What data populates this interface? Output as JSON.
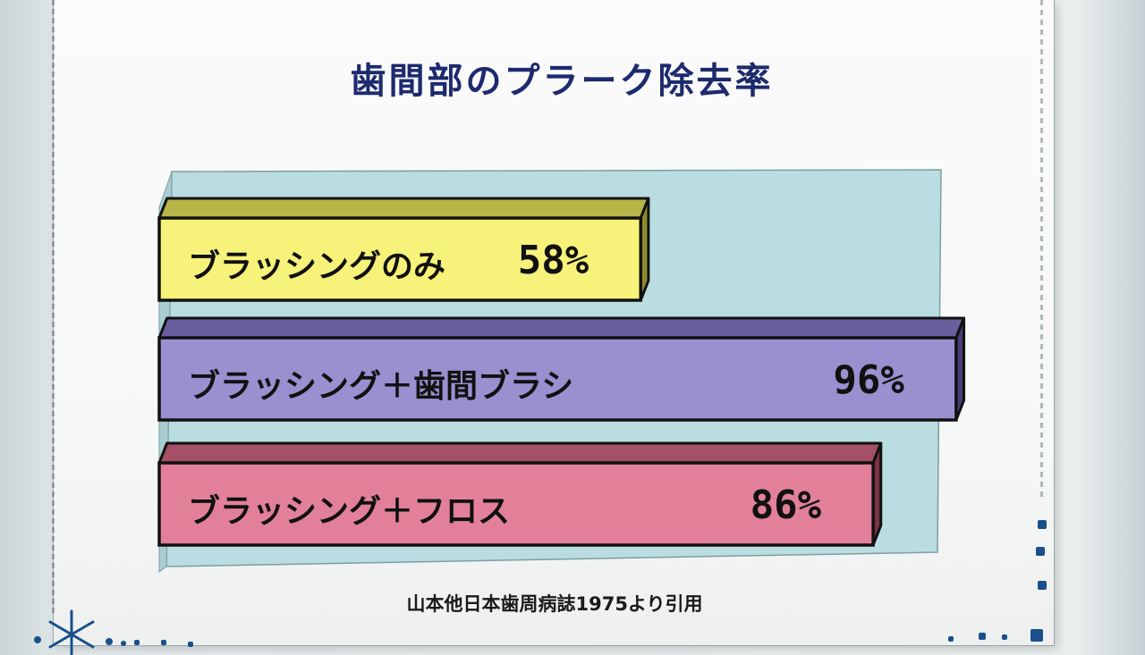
{
  "chart_data": {
    "type": "bar",
    "orientation": "horizontal",
    "style": "3d",
    "title": "歯間部のプラーク除去率",
    "categories": [
      "ブラッシングのみ",
      "ブラッシング＋歯間ブラシ",
      "ブラッシング＋フロス"
    ],
    "values": [
      58,
      96,
      86
    ],
    "value_labels": [
      "58%",
      "96%",
      "86%"
    ],
    "unit": "%",
    "xlim": [
      0,
      100
    ],
    "grid": false,
    "legend": "none",
    "colors": [
      "#f6f27a",
      "#9b8fd0",
      "#e2809a"
    ],
    "side_colors": [
      "#8e8a2e",
      "#4a3c7a",
      "#7a3244"
    ],
    "top_colors": [
      "#b7b448",
      "#6b5e9e",
      "#a55067"
    ],
    "background_color": "#b9dde0",
    "source": "山本他日本歯周病誌1975より引用"
  },
  "colors": {
    "title": "#1d2a6e",
    "deco": "#1a4f8c"
  }
}
